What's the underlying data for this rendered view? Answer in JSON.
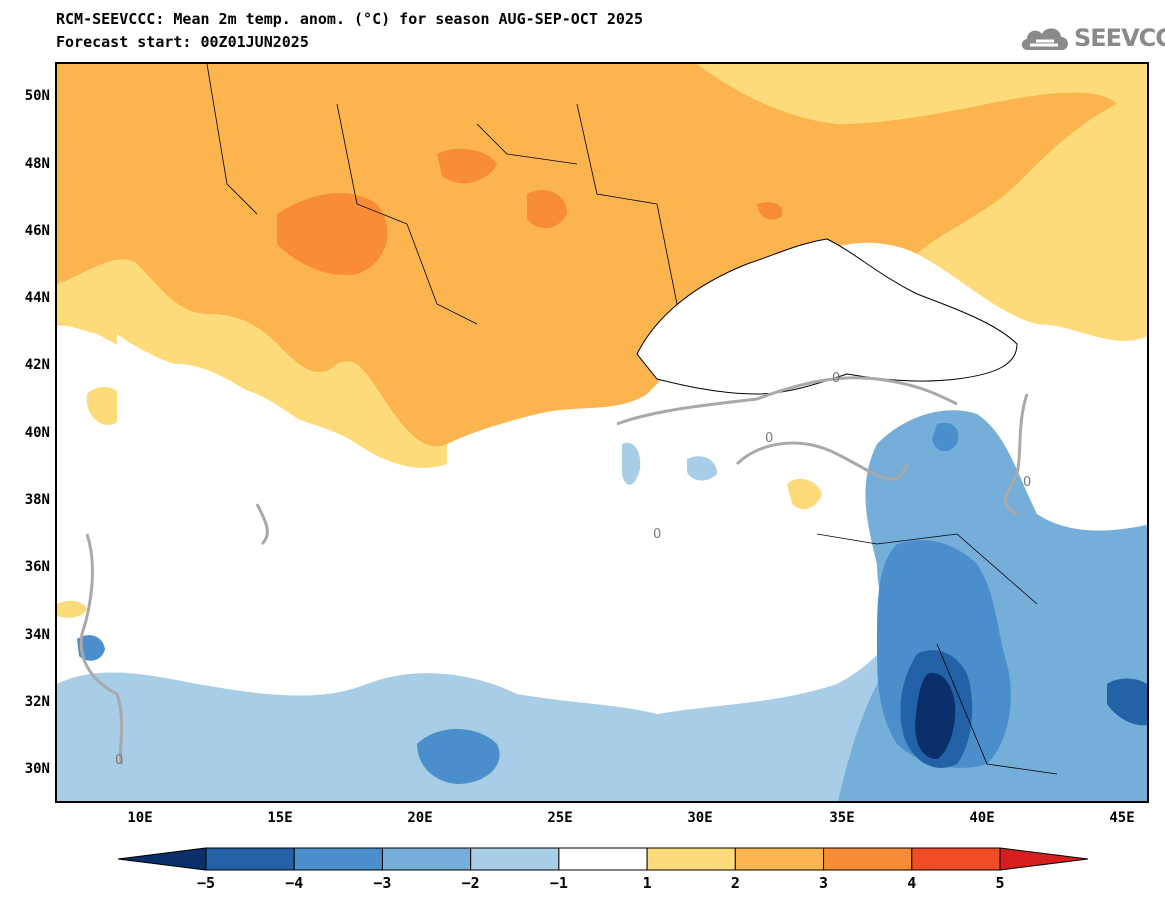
{
  "header": {
    "line1": "RCM-SEEVCCC: Mean 2m temp. anom. (°C) for season AUG-SEP-OCT 2025",
    "line2": "Forecast start: 00Z01JUN2025",
    "logo_text": "SEEVCCC"
  },
  "map": {
    "lat_labels": [
      "50N",
      "48N",
      "46N",
      "44N",
      "42N",
      "40N",
      "38N",
      "36N",
      "34N",
      "32N",
      "30N"
    ],
    "lon_labels": [
      "10E",
      "15E",
      "20E",
      "25E",
      "30E",
      "35E",
      "40E",
      "45E"
    ],
    "contour_label": "0"
  },
  "colorbar": {
    "ticks": [
      "−5",
      "−4",
      "−3",
      "−2",
      "−1",
      "1",
      "2",
      "3",
      "4",
      "5"
    ],
    "colors": [
      "#0a2f6b",
      "#2462a8",
      "#4a8fcc",
      "#75aed9",
      "#a8cde6",
      "#ffffff",
      "#fedb7a",
      "#fcb44e",
      "#f98c37",
      "#f04c25",
      "#d61e1e"
    ]
  }
}
